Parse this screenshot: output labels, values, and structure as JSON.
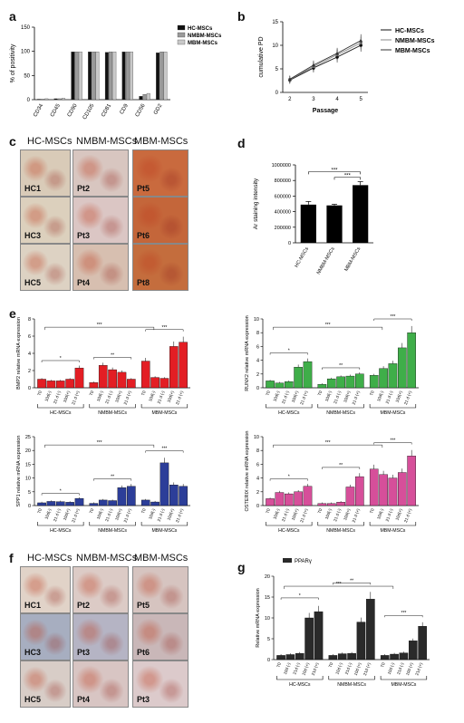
{
  "panel_letters": [
    "a",
    "b",
    "c",
    "d",
    "e",
    "f",
    "g"
  ],
  "panel_a": {
    "ylabel": "% of positivity",
    "legend": [
      "HC-MSCs",
      "NMBM-MSCs",
      "MBM-MSCs"
    ],
    "colors": [
      "#111111",
      "#9a9a9a",
      "#c9c9c9"
    ]
  },
  "panel_b": {
    "ylabel": "cumulative PD",
    "xlabel": "Passage",
    "legend": [
      "HC-MSCs",
      "NMBM-MSCs",
      "MBM-MSCs"
    ]
  },
  "panel_c": {
    "headers": [
      "HC-MSCs",
      "NMBM-MSCs",
      "MBM-MSCs"
    ],
    "tiles": [
      {
        "label": "HC1",
        "tone": "#d9cbb8"
      },
      {
        "label": "Pt2",
        "tone": "#d8c6c0"
      },
      {
        "label": "Pt5",
        "tone": "#c96a3e"
      },
      {
        "label": "HC3",
        "tone": "#dcd0bd"
      },
      {
        "label": "Pt3",
        "tone": "#dbc6c4"
      },
      {
        "label": "Pt6",
        "tone": "#c4663a"
      },
      {
        "label": "HC5",
        "tone": "#ddd2c3"
      },
      {
        "label": "Pt4",
        "tone": "#d7bfb0"
      },
      {
        "label": "Pt8",
        "tone": "#c46d3d"
      }
    ]
  },
  "panel_d": {
    "ylabel": "Ar staining intensity",
    "sig": "***"
  },
  "panel_e": {
    "time_labels": [
      "T0",
      "10d(-)",
      "21 d (-)",
      "10d(+)",
      "21 d (+)"
    ],
    "group_labels": [
      "HC-MSCs",
      "NMBM-MSCs",
      "MBM-MSCs"
    ],
    "sig_marks": [
      "*",
      "**",
      "***"
    ],
    "colors": [
      "#e31e24",
      "#3fae49",
      "#2c3e99",
      "#d64f9a"
    ]
  },
  "panel_f": {
    "headers": [
      "HC-MSCs",
      "NMBM-MSCs",
      "MBM-MSCs"
    ],
    "tiles": [
      {
        "label": "HC1",
        "tone": "#e1d3c8"
      },
      {
        "label": "Pt2",
        "tone": "#dccbc6"
      },
      {
        "label": "Pt5",
        "tone": "#d6c4c0"
      },
      {
        "label": "HC3",
        "tone": "#a7aec0"
      },
      {
        "label": "Pt3",
        "tone": "#b5b4c4"
      },
      {
        "label": "Pt6",
        "tone": "#c9b7b8"
      },
      {
        "label": "HC5",
        "tone": "#d8cdc7"
      },
      {
        "label": "Pt4",
        "tone": "#d8c5c3"
      },
      {
        "label": "Pt3",
        "tone": "#dccacb"
      }
    ]
  },
  "panel_g": {
    "ylabel": "Relative mRNA expression",
    "legend": "PPARγ",
    "time_labels": [
      "T0",
      "10d (-)",
      "21d (-)",
      "10d (+)",
      "21d (+)"
    ]
  },
  "chart_data": [
    {
      "panel": "a",
      "type": "bar",
      "categories": [
        "CD34",
        "CD45",
        "CD90",
        "CD105",
        "CD81",
        "CD9",
        "CD56",
        "GD2"
      ],
      "series": [
        {
          "name": "HC-MSCs",
          "values": [
            1,
            2,
            99,
            99,
            98,
            99,
            7,
            97
          ]
        },
        {
          "name": "NMBM-MSCs",
          "values": [
            1,
            2,
            99,
            99,
            99,
            99,
            11,
            99
          ]
        },
        {
          "name": "MBM-MSCs",
          "values": [
            2,
            3,
            99,
            99,
            99,
            99,
            13,
            99
          ]
        }
      ],
      "ylabel": "% of positivity",
      "ylim": [
        0,
        150
      ],
      "yticks": [
        0,
        50,
        100,
        150
      ],
      "legend": "top-right"
    },
    {
      "panel": "b",
      "type": "line",
      "x": [
        2,
        3,
        4,
        5
      ],
      "series": [
        {
          "name": "HC-MSCs",
          "values": [
            2.6,
            5.2,
            7.5,
            10.0
          ]
        },
        {
          "name": "NMBM-MSCs",
          "values": [
            2.7,
            5.5,
            8.0,
            10.5
          ]
        },
        {
          "name": "MBM-MSCs",
          "values": [
            2.8,
            5.8,
            8.3,
            11.0
          ]
        }
      ],
      "xlabel": "Passage",
      "ylabel": "cumulative PD",
      "ylim": [
        0,
        15
      ],
      "yticks": [
        0,
        5,
        10,
        15
      ],
      "legend": "top-right"
    },
    {
      "panel": "d",
      "type": "bar",
      "categories": [
        "HC-MSCs",
        "NMBM-MSCs",
        "MBM-MSCs"
      ],
      "values": [
        490000,
        480000,
        740000
      ],
      "errors": [
        40000,
        15000,
        45000
      ],
      "ylabel": "Ar staining intensity",
      "ylim": [
        0,
        1000000
      ],
      "yticks": [
        0,
        200000,
        400000,
        600000,
        800000,
        1000000
      ]
    },
    {
      "panel": "e1",
      "type": "bar",
      "ylabel": "BMP2 relative mRNA expression",
      "ylim": [
        0,
        8
      ],
      "yticks": [
        0,
        2,
        4,
        6,
        8
      ],
      "groups": [
        {
          "name": "HC-MSCs",
          "values": [
            1.0,
            0.8,
            0.8,
            1.0,
            2.3
          ]
        },
        {
          "name": "NMBM-MSCs",
          "values": [
            0.6,
            2.6,
            2.1,
            1.8,
            1.0
          ]
        },
        {
          "name": "MBM-MSCs",
          "values": [
            3.1,
            1.2,
            1.1,
            4.8,
            5.3
          ]
        }
      ]
    },
    {
      "panel": "e2",
      "type": "bar",
      "ylabel": "RUNX2 relative mRNA expression",
      "ylim": [
        0,
        10
      ],
      "yticks": [
        0,
        2,
        4,
        6,
        8,
        10
      ],
      "groups": [
        {
          "name": "HC-MSCs",
          "values": [
            1.0,
            0.7,
            0.9,
            3.0,
            3.8
          ]
        },
        {
          "name": "NMBM-MSCs",
          "values": [
            0.5,
            1.3,
            1.6,
            1.7,
            2.0
          ]
        },
        {
          "name": "MBM-MSCs",
          "values": [
            1.8,
            2.8,
            3.5,
            5.8,
            8.0
          ]
        }
      ]
    },
    {
      "panel": "e3",
      "type": "bar",
      "ylabel": "SPP1 relative mRNA expression",
      "ylim": [
        0,
        25
      ],
      "yticks": [
        0,
        5,
        10,
        15,
        20,
        25
      ],
      "groups": [
        {
          "name": "HC-MSCs",
          "values": [
            1.0,
            1.5,
            1.4,
            1.2,
            2.6
          ]
        },
        {
          "name": "NMBM-MSCs",
          "values": [
            0.8,
            2.0,
            1.8,
            6.5,
            7.0
          ]
        },
        {
          "name": "MBM-MSCs",
          "values": [
            2.0,
            1.3,
            15.5,
            7.5,
            7.0
          ]
        }
      ]
    },
    {
      "panel": "e4",
      "type": "bar",
      "ylabel": "OSTERIX relative mRNA expression",
      "ylim": [
        0,
        10
      ],
      "yticks": [
        0,
        2,
        4,
        6,
        8,
        10
      ],
      "groups": [
        {
          "name": "HC-MSCs",
          "values": [
            1.0,
            1.9,
            1.7,
            2.0,
            2.8
          ]
        },
        {
          "name": "NMBM-MSCs",
          "values": [
            0.3,
            0.3,
            0.5,
            2.7,
            4.2
          ]
        },
        {
          "name": "MBM-MSCs",
          "values": [
            5.3,
            4.5,
            4.0,
            4.8,
            7.2
          ]
        }
      ]
    },
    {
      "panel": "g",
      "type": "bar",
      "ylabel": "Relative mRNA expression",
      "ylim": [
        0,
        20
      ],
      "yticks": [
        0,
        5,
        10,
        15,
        20
      ],
      "groups": [
        {
          "name": "HC-MSCs",
          "values": [
            1.0,
            1.2,
            1.5,
            10.0,
            11.5
          ]
        },
        {
          "name": "NMBM-MSCs",
          "values": [
            1.0,
            1.4,
            1.5,
            9.0,
            14.5
          ]
        },
        {
          "name": "MBM-MSCs",
          "values": [
            1.0,
            1.3,
            1.6,
            4.5,
            8.0
          ]
        }
      ]
    }
  ]
}
